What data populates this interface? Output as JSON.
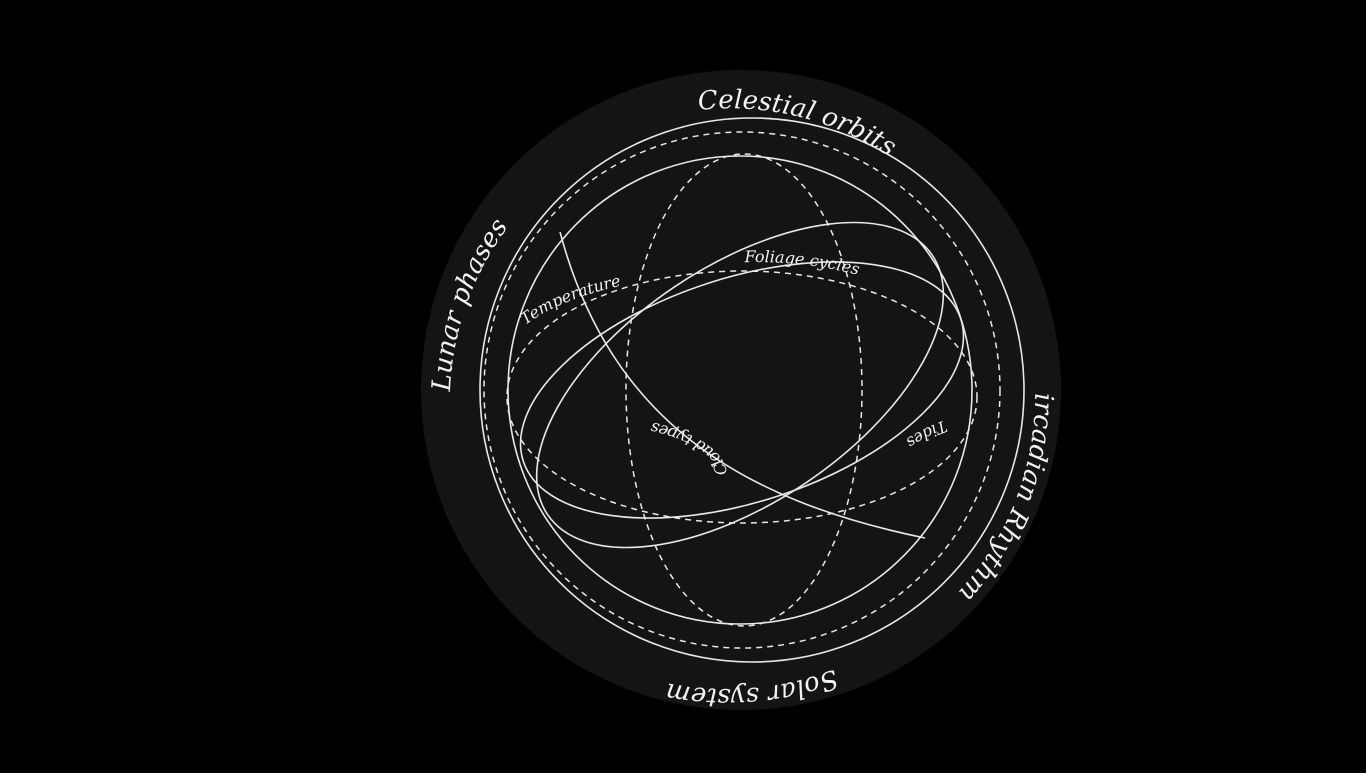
{
  "colors": {
    "page_background": "#000000",
    "disc_fill": "#141414",
    "line_color": "#e8e8e8",
    "text_color": "#f2f2f2"
  },
  "labels": {
    "celestial_orbits": "Celestial orbits",
    "lunar_phases": "Lunar phases",
    "circadian_rhythms": "Circadian Rhythms",
    "solar_system": "Solar system",
    "foliage_cycles": "Foliage cycles",
    "temperature": "Temperature",
    "cloud_types": "Cloud types",
    "tides": "Tides"
  }
}
